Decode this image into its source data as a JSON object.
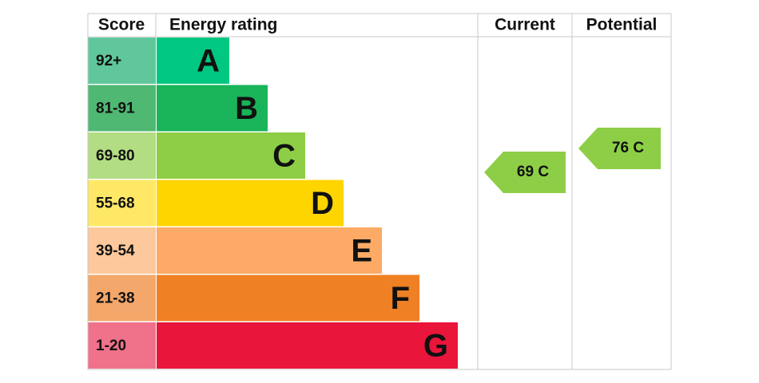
{
  "header": {
    "score": "Score",
    "rating": "Energy rating",
    "current": "Current",
    "potential": "Potential"
  },
  "bands": [
    {
      "score": "92+",
      "letter": "A"
    },
    {
      "score": "81-91",
      "letter": "B"
    },
    {
      "score": "69-80",
      "letter": "C"
    },
    {
      "score": "55-68",
      "letter": "D"
    },
    {
      "score": "39-54",
      "letter": "E"
    },
    {
      "score": "21-38",
      "letter": "F"
    },
    {
      "score": "1-20",
      "letter": "G"
    }
  ],
  "current": "69 C",
  "potential": "76 C"
}
